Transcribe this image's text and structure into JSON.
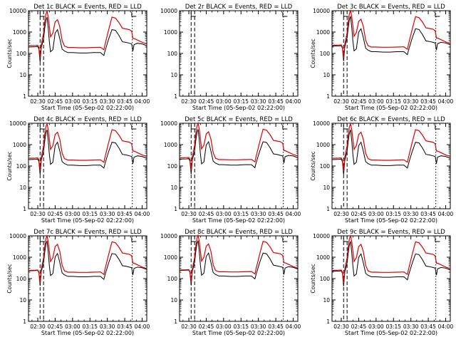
{
  "colors": {
    "events": "#000000",
    "lld": "#dd0000",
    "axes": "#000000",
    "background": "#ffffff"
  },
  "chart_data": [
    {
      "type": "line",
      "title": "Det 1c BLACK = Events, RED = LLD",
      "xlabel": "Start Time (05-Sep-02 02:22:00)",
      "ylabel": "Counts/sec",
      "ylog": true,
      "ylim": [
        1,
        10000
      ],
      "yticks": [
        "1",
        "10",
        "100",
        "1000",
        "10000"
      ],
      "xticks": [
        "02:30",
        "02:45",
        "03:00",
        "03:15",
        "03:30",
        "03:45",
        "04:00"
      ],
      "has_data": true,
      "variant": 0
    },
    {
      "type": "line",
      "title": "Det 2r BLACK = Events, RED = LLD",
      "xlabel": "Start Time (05-Sep-02 02:22:00)",
      "ylabel": "",
      "ylog": true,
      "ylim": [
        1,
        10000
      ],
      "yticks": [
        "1",
        "10",
        "100",
        "1000",
        "10000"
      ],
      "xticks": [
        "02:30",
        "02:45",
        "03:00",
        "03:15",
        "03:30",
        "03:45",
        "04:00"
      ],
      "has_data": false,
      "variant": 1
    },
    {
      "type": "line",
      "title": "Det 3c BLACK = Events, RED = LLD",
      "xlabel": "Start Time (05-Sep-02 02:22:00)",
      "ylabel": "Counts/sec",
      "ylog": true,
      "ylim": [
        1,
        10000
      ],
      "yticks": [
        "1",
        "10",
        "100",
        "1000",
        "10000"
      ],
      "xticks": [
        "02:30",
        "02:45",
        "03:00",
        "03:15",
        "03:30",
        "03:45",
        "04:00"
      ],
      "has_data": true,
      "variant": 2
    },
    {
      "type": "line",
      "title": "Det 4c BLACK = Events, RED = LLD",
      "xlabel": "Start Time (05-Sep-02 02:22:00)",
      "ylabel": "Counts/sec",
      "ylog": true,
      "ylim": [
        1,
        10000
      ],
      "yticks": [
        "1",
        "10",
        "100",
        "1000",
        "10000"
      ],
      "xticks": [
        "02:30",
        "02:45",
        "03:00",
        "03:15",
        "03:30",
        "03:45",
        "04:00"
      ],
      "has_data": true,
      "variant": 3
    },
    {
      "type": "line",
      "title": "Det 5c BLACK = Events, RED = LLD",
      "xlabel": "Start Time (05-Sep-02 02:22:00)",
      "ylabel": "",
      "ylog": true,
      "ylim": [
        1,
        10000
      ],
      "yticks": [
        "1",
        "10",
        "100",
        "1000",
        "10000"
      ],
      "xticks": [
        "02:30",
        "02:45",
        "03:00",
        "03:15",
        "03:30",
        "03:45",
        "04:00"
      ],
      "has_data": true,
      "variant": 4
    },
    {
      "type": "line",
      "title": "Det 6c BLACK = Events, RED = LLD",
      "xlabel": "Start Time (05-Sep-02 02:22:00)",
      "ylabel": "Counts/sec",
      "ylog": true,
      "ylim": [
        1,
        10000
      ],
      "yticks": [
        "1",
        "10",
        "100",
        "1000",
        "10000"
      ],
      "xticks": [
        "02:30",
        "02:45",
        "03:00",
        "03:15",
        "03:30",
        "03:45",
        "04:00"
      ],
      "has_data": true,
      "variant": 5
    },
    {
      "type": "line",
      "title": "Det 7c BLACK = Events, RED = LLD",
      "xlabel": "Start Time (05-Sep-02 02:22:00)",
      "ylabel": "Counts/sec",
      "ylog": true,
      "ylim": [
        1,
        10000
      ],
      "yticks": [
        "1",
        "10",
        "100",
        "1000",
        "10000"
      ],
      "xticks": [
        "02:30",
        "02:45",
        "03:00",
        "03:15",
        "03:30",
        "03:45",
        "04:00"
      ],
      "has_data": true,
      "variant": 6
    },
    {
      "type": "line",
      "title": "Det 8c BLACK = Events, RED = LLD",
      "xlabel": "Start Time (05-Sep-02 02:22:00)",
      "ylabel": "",
      "ylog": true,
      "ylim": [
        1,
        10000
      ],
      "yticks": [
        "1",
        "10",
        "100",
        "1000",
        "10000"
      ],
      "xticks": [
        "02:30",
        "02:45",
        "03:00",
        "03:15",
        "03:30",
        "03:45",
        "04:00"
      ],
      "has_data": true,
      "variant": 7
    },
    {
      "type": "line",
      "title": "Det 9c BLACK = Events, RED = LLD",
      "xlabel": "Start Time (05-Sep-02 02:22:00)",
      "ylabel": "Counts/sec",
      "ylog": true,
      "ylim": [
        1,
        10000
      ],
      "yticks": [
        "1",
        "10",
        "100",
        "1000",
        "10000"
      ],
      "xticks": [
        "02:30",
        "02:45",
        "03:00",
        "03:15",
        "03:30",
        "03:45",
        "04:00"
      ],
      "has_data": true,
      "variant": 8
    }
  ]
}
